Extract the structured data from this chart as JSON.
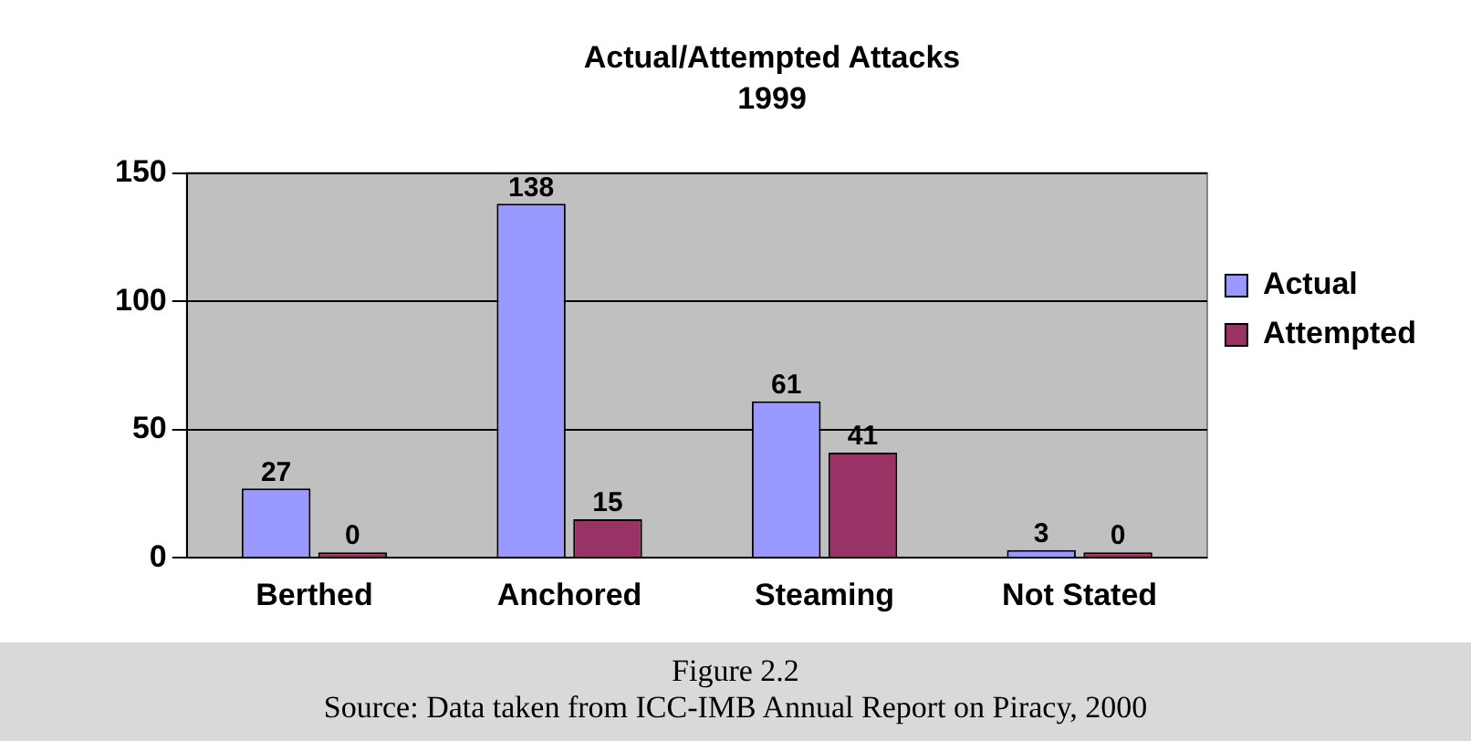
{
  "chart_data": {
    "type": "bar",
    "title": "Actual/Attempted Attacks",
    "subtitle": "1999",
    "categories": [
      "Berthed",
      "Anchored",
      "Steaming",
      "Not Stated"
    ],
    "series": [
      {
        "name": "Actual",
        "color": "#9999ff",
        "values": [
          27,
          138,
          61,
          3
        ]
      },
      {
        "name": "Attempted",
        "color": "#993366",
        "values": [
          0,
          15,
          41,
          0
        ]
      }
    ],
    "ylim": [
      0,
      150
    ],
    "yticks": [
      0,
      50,
      100,
      150
    ],
    "grid": "y",
    "legend": "right",
    "data_labels": true,
    "annotations": [
      "Figure 2.2",
      "Source: Data taken from ICC-IMB Annual Report on Piracy, 2000"
    ]
  }
}
